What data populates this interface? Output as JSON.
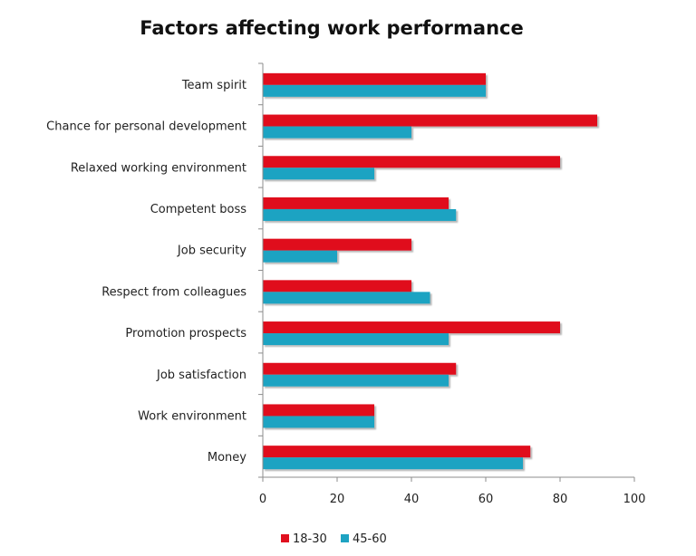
{
  "chart_data": {
    "type": "bar",
    "orientation": "horizontal",
    "title": "Factors affecting work performance",
    "xlabel": "",
    "ylabel": "",
    "xlim": [
      0,
      100
    ],
    "ticks": [
      0,
      20,
      40,
      60,
      80,
      100
    ],
    "tick_labels": [
      "0",
      "20",
      "40",
      "60",
      "80",
      "100"
    ],
    "categories": [
      "Team spirit",
      "Chance for personal development",
      "Relaxed working environment",
      "Competent boss",
      "Job security",
      "Respect from colleagues",
      "Promotion prospects",
      "Job satisfaction",
      "Work environment",
      "Money"
    ],
    "series": [
      {
        "name": "18-30",
        "color": "#e0101f",
        "values": [
          60,
          90,
          80,
          50,
          40,
          40,
          80,
          52,
          30,
          72
        ]
      },
      {
        "name": "45-60",
        "color": "#1ea3c2",
        "values": [
          60,
          40,
          30,
          52,
          20,
          45,
          50,
          50,
          30,
          70
        ]
      }
    ],
    "legend_position": "bottom",
    "grid": false
  }
}
